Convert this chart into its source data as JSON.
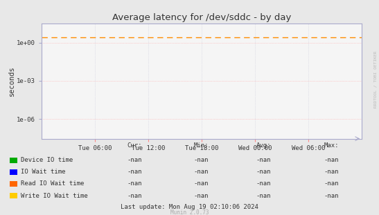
{
  "title": "Average latency for /dev/sddc - by day",
  "ylabel": "seconds",
  "background_color": "#e8e8e8",
  "plot_bg_color": "#f5f5f5",
  "grid_color": "#ccccdd",
  "ylim_log": [
    3e-08,
    30.0
  ],
  "yticks": [
    1e-06,
    0.001,
    1.0
  ],
  "ytick_labels": [
    "1e-06",
    "1e-03",
    "1e+00"
  ],
  "xtick_labels": [
    "Tue 06:00",
    "Tue 12:00",
    "Tue 18:00",
    "Wed 00:00",
    "Wed 06:00"
  ],
  "dashed_line_y": 2.5,
  "dashed_line_color": "#ff8c00",
  "watermark_text": "RRDTOOL / TOBI OETIKER",
  "munin_text": "Munin 2.0.73",
  "last_update_text": "Last update: Mon Aug 19 02:10:06 2024",
  "legend_items": [
    {
      "label": "Device IO time",
      "color": "#00aa00"
    },
    {
      "label": "IO Wait time",
      "color": "#0000ff"
    },
    {
      "label": "Read IO Wait time",
      "color": "#ff6600"
    },
    {
      "label": "Write IO Wait time",
      "color": "#ffcc00"
    }
  ],
  "legend_cols": [
    "Cur:",
    "Min:",
    "Avg:",
    "Max:"
  ],
  "axis_spine_color": "#aaaacc",
  "xtick_color": "#ff8888",
  "ytick_color": "#aaaacc"
}
